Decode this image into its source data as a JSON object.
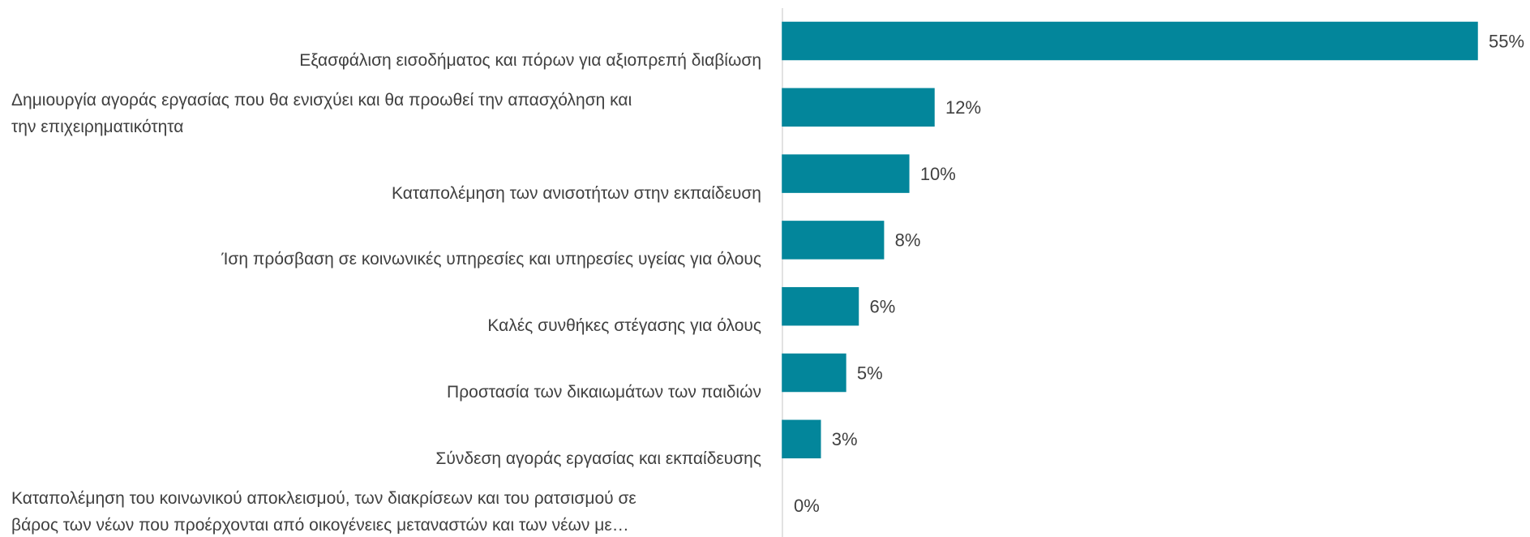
{
  "chart_data": {
    "type": "barh",
    "categories": [
      "Εξασφάλιση εισοδήματος και πόρων για αξιοπρεπή διαβίωση",
      "Δημιουργία αγοράς εργασίας που θα ενισχύει και θα προωθεί την απασχόληση και\nτην επιχειρηματικότητα",
      "Καταπολέμηση των ανισοτήτων στην εκπαίδευση",
      "Ίση πρόσβαση σε κοινωνικές υπηρεσίες και υπηρεσίες υγείας για όλους",
      "Καλές συνθήκες στέγασης για όλους",
      "Προστασία των δικαιωμάτων των παιδιών",
      "Σύνδεση αγοράς εργασίας και εκπαίδευσης",
      "Καταπολέμηση του κοινωνικού αποκλεισμού, των διακρίσεων και του ρατσισμού σε\nβάρος των νέων που προέρχονται από οικογένειες μεταναστών και των νέων με…"
    ],
    "values": [
      55,
      12,
      10,
      8,
      6,
      5,
      3,
      0
    ],
    "value_labels": [
      "55%",
      "12%",
      "10%",
      "8%",
      "6%",
      "5%",
      "3%",
      "0%"
    ],
    "color": "#03869b",
    "xlim": [
      0,
      55
    ]
  }
}
